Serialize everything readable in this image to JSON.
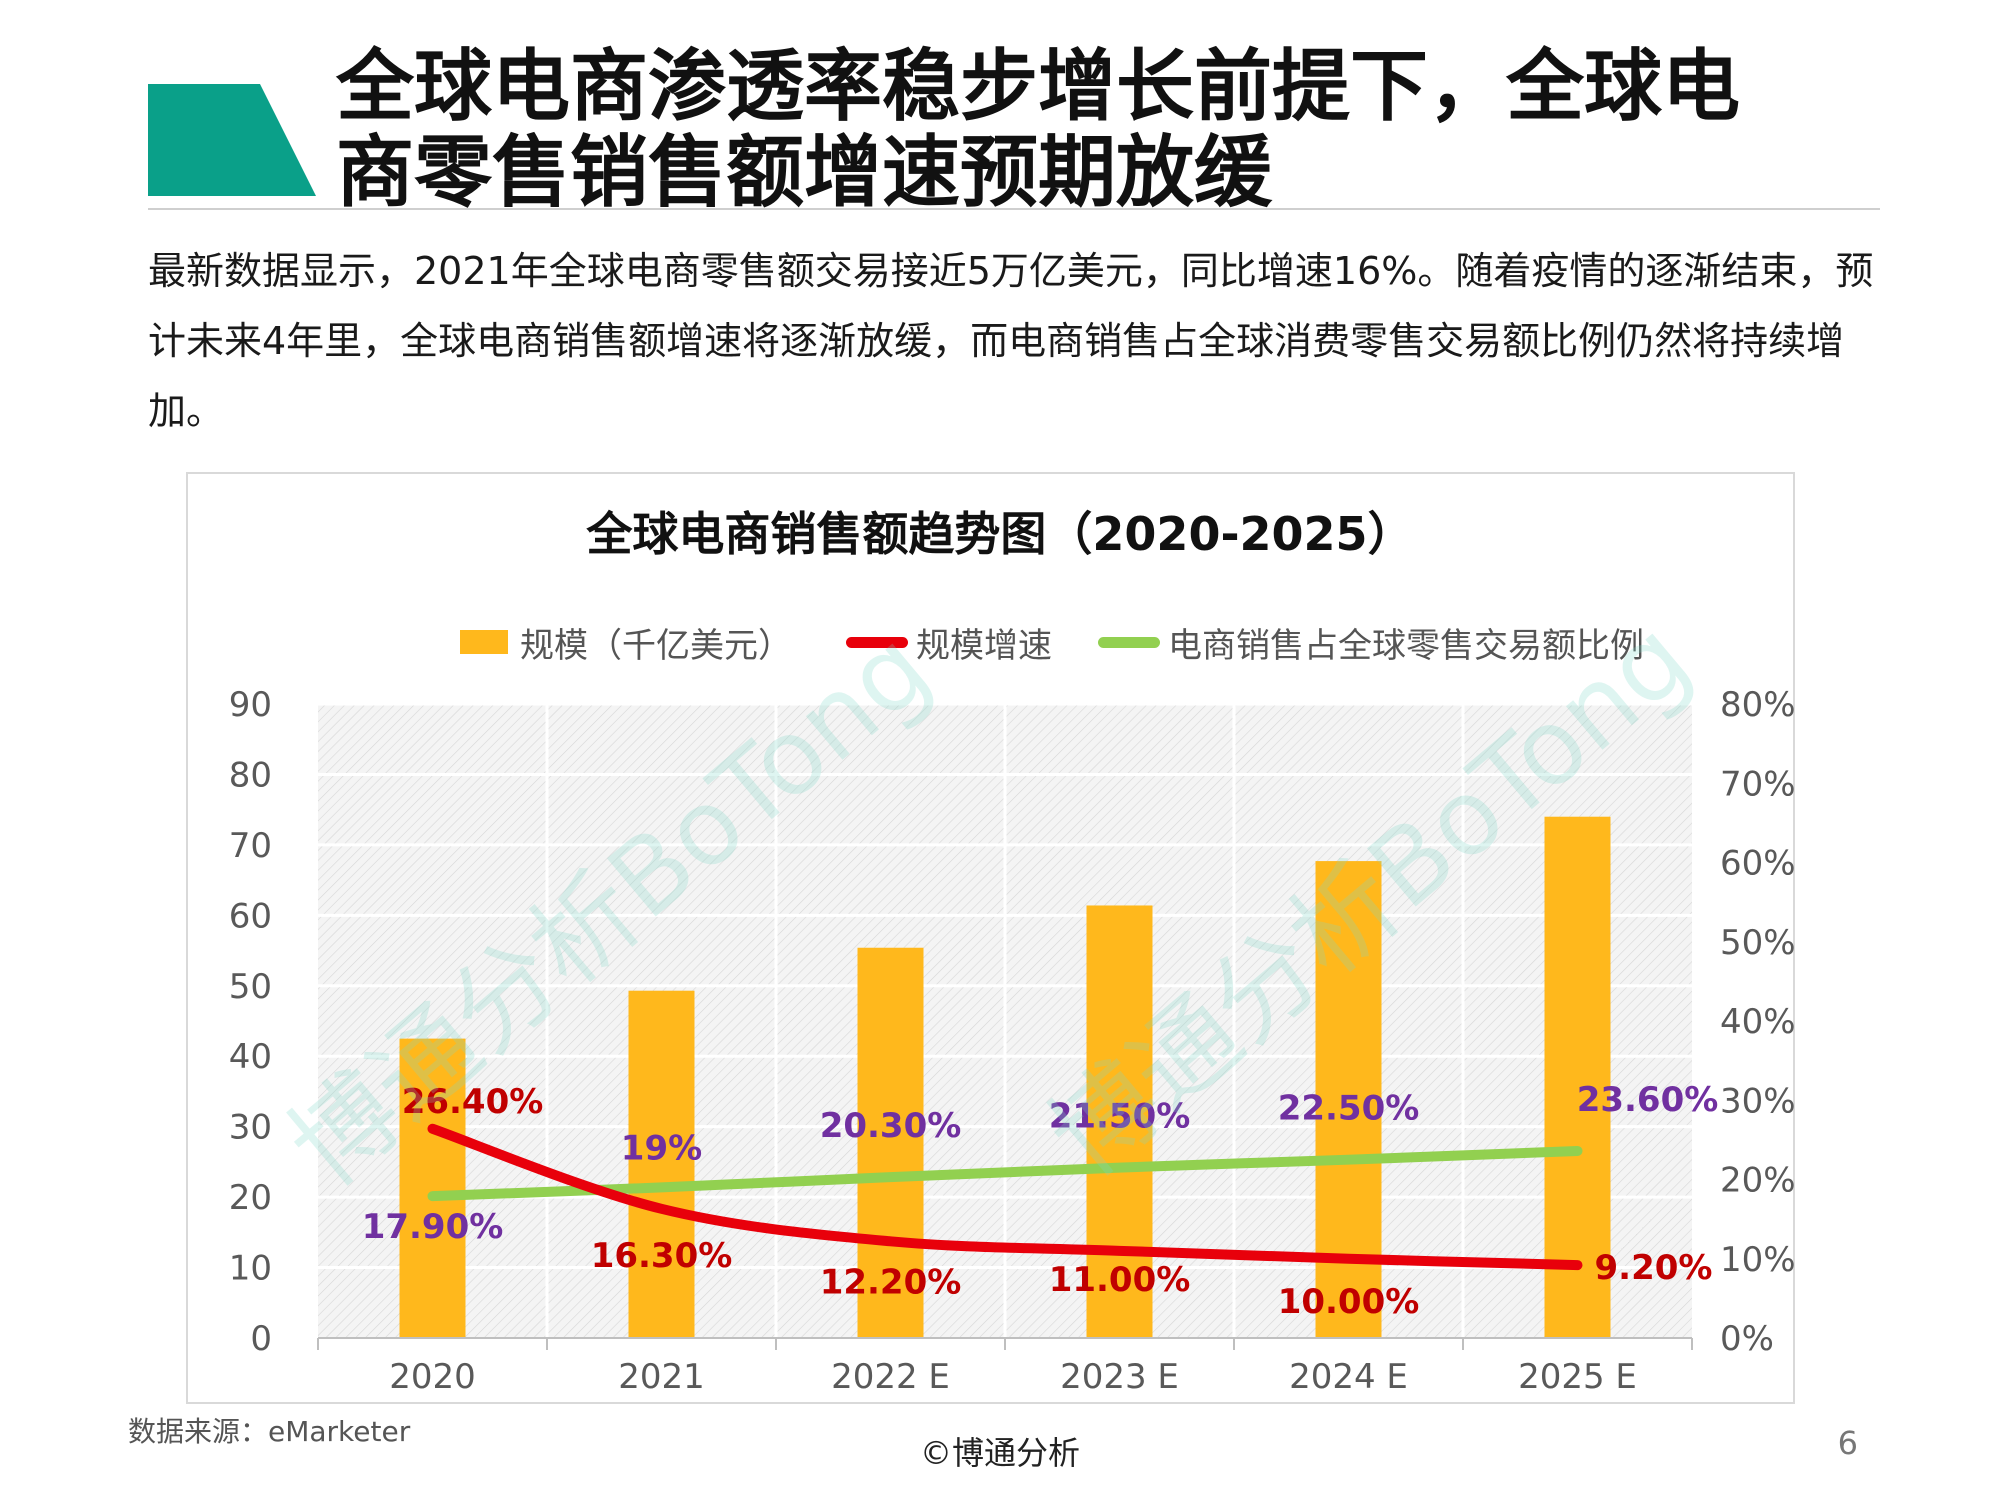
{
  "heading": {
    "line1": "全球电商渗透率稳步增长前提下，全球电",
    "line2": "商零售销售额增速预期放缓",
    "accent_color": "#0AA089"
  },
  "intro": {
    "text": "最新数据显示，2021年全球电商零售额交易接近5万亿美元，同比增速16%。随着疫情的逐渐结束，预计未来4年里，全球电商销售额增速将逐渐放缓，而电商销售占全球消费零售交易额比例仍然将持续增加。"
  },
  "chart_data": {
    "type": "bar",
    "title": "全球电商销售额趋势图（2020-2025）",
    "categories": [
      "2020",
      "2021",
      "2022 E",
      "2023 E",
      "2024 E",
      "2025 E"
    ],
    "y_left": {
      "ylim": [
        0,
        90
      ],
      "ticks": [
        "0",
        "10",
        "20",
        "30",
        "40",
        "50",
        "60",
        "70",
        "80",
        "90"
      ]
    },
    "y_right": {
      "ylim": [
        0,
        80
      ],
      "ticks": [
        "0%",
        "10%",
        "20%",
        "30%",
        "40%",
        "50%",
        "60%",
        "70%",
        "80%"
      ]
    },
    "legend_position": "top",
    "grid": true,
    "series": [
      {
        "name": "规模（千亿美元）",
        "type": "bar",
        "axis": "left",
        "color": "#FFB81C",
        "values": [
          42.5,
          49.3,
          55.4,
          61.4,
          67.7,
          74.0
        ]
      },
      {
        "name": "规模增速",
        "type": "line",
        "axis": "right",
        "color": "#E8000B",
        "label_color": "#C00000",
        "values": [
          26.4,
          16.3,
          12.2,
          11.0,
          10.0,
          9.2
        ],
        "labels": [
          "26.40%",
          "16.30%",
          "12.20%",
          "11.00%",
          "10.00%",
          "9.20%"
        ]
      },
      {
        "name": "电商销售占全球零售交易额比例",
        "type": "line",
        "axis": "right",
        "color": "#92D050",
        "label_color": "#7030A0",
        "values": [
          17.9,
          19.0,
          20.3,
          21.5,
          22.5,
          23.6
        ],
        "labels": [
          "17.90%",
          "19%",
          "20.30%",
          "21.50%",
          "22.50%",
          "23.60%"
        ]
      }
    ]
  },
  "watermark": {
    "text": "博通分析BoTong"
  },
  "footer": {
    "source": "数据来源：eMarketer",
    "copyright": "©博通分析",
    "page_number": "6"
  }
}
